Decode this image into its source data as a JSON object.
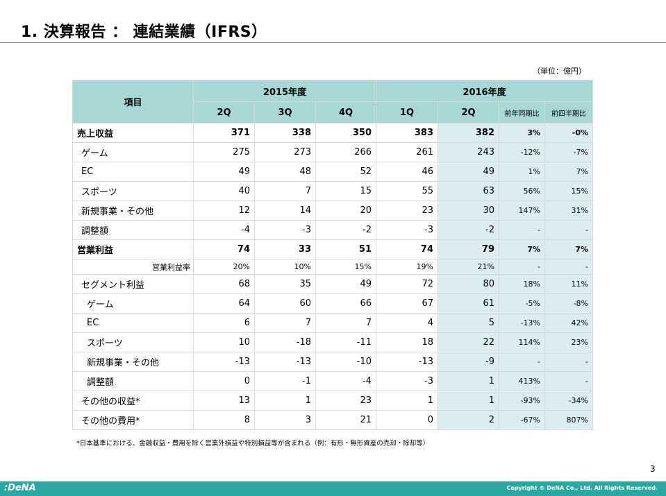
{
  "header": {
    "title": "1. 決算報告 ： 連結業績（IFRS）"
  },
  "unit": "（単位：億円）",
  "table": {
    "item_header": "項目",
    "groups": [
      "2015年度",
      "2016年度"
    ],
    "columns": [
      "2Q",
      "3Q",
      "4Q",
      "1Q",
      "2Q",
      "前年同期比",
      "前四半期比"
    ],
    "rows": [
      {
        "label": "売上収益",
        "values": [
          "371",
          "338",
          "350",
          "383",
          "382",
          "3%",
          "-0%"
        ]
      },
      {
        "label": "ゲーム",
        "values": [
          "275",
          "273",
          "266",
          "261",
          "243",
          "-12%",
          "-7%"
        ]
      },
      {
        "label": "EC",
        "values": [
          "49",
          "48",
          "52",
          "46",
          "49",
          "1%",
          "7%"
        ]
      },
      {
        "label": "スポーツ",
        "values": [
          "40",
          "7",
          "15",
          "55",
          "63",
          "56%",
          "15%"
        ]
      },
      {
        "label": "新規事業・その他",
        "values": [
          "12",
          "14",
          "20",
          "23",
          "30",
          "147%",
          "31%"
        ]
      },
      {
        "label": "調整額",
        "values": [
          "-4",
          "-3",
          "-2",
          "-3",
          "-2",
          "-",
          "-"
        ]
      },
      {
        "label": "営業利益",
        "values": [
          "74",
          "33",
          "51",
          "74",
          "79",
          "7%",
          "7%"
        ]
      },
      {
        "label": "営業利益率",
        "values": [
          "20%",
          "10%",
          "15%",
          "19%",
          "21%",
          "-",
          "-"
        ]
      },
      {
        "label": "セグメント利益",
        "values": [
          "68",
          "35",
          "49",
          "72",
          "80",
          "18%",
          "11%"
        ]
      },
      {
        "label": "ゲーム",
        "values": [
          "64",
          "60",
          "66",
          "67",
          "61",
          "-5%",
          "-8%"
        ]
      },
      {
        "label": "EC",
        "values": [
          "6",
          "7",
          "7",
          "4",
          "5",
          "-13%",
          "42%"
        ]
      },
      {
        "label": "スポーツ",
        "values": [
          "10",
          "-18",
          "-11",
          "18",
          "22",
          "114%",
          "23%"
        ]
      },
      {
        "label": "新規事業・その他",
        "values": [
          "-13",
          "-13",
          "-10",
          "-13",
          "-9",
          "-",
          "-"
        ]
      },
      {
        "label": "調整額",
        "values": [
          "0",
          "-1",
          "-4",
          "-3",
          "1",
          "413%",
          "-"
        ]
      },
      {
        "label": "その他の収益*",
        "values": [
          "13",
          "1",
          "23",
          "1",
          "1",
          "-93%",
          "-34%"
        ]
      },
      {
        "label": "その他の費用*",
        "values": [
          "8",
          "3",
          "21",
          "0",
          "2",
          "-67%",
          "807%"
        ]
      }
    ]
  },
  "footnote": "*日本基準における、金融収益・費用を除く営業外損益や特別損益等が含まれる（例：有形・無形資産の売却・除却等）",
  "page_number": "3",
  "footer": {
    "logo": ":DeNA",
    "copyright": "Copyright © DeNA Co., Ltd. All Rights Reserved."
  },
  "colors": {
    "header_fill": "#a7d8d6",
    "highlight_fill": "#dcedf1",
    "footer_bar": "#2aa7a0"
  }
}
